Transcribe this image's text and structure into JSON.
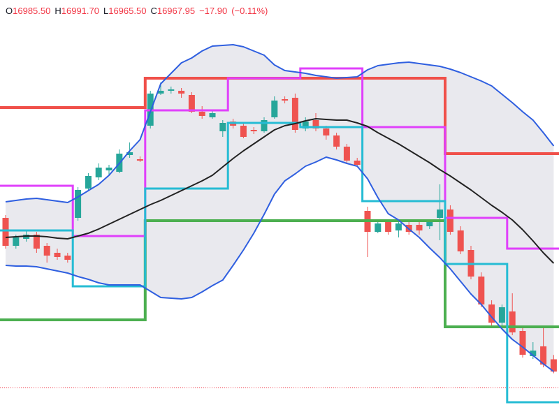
{
  "header": {
    "items": [
      {
        "key": "O",
        "value": "16985.50"
      },
      {
        "key": "H",
        "value": "16991.70"
      },
      {
        "key": "L",
        "value": "16965.50"
      },
      {
        "key": "C",
        "value": "16967.95"
      }
    ],
    "change": "−17.90",
    "change_pct": "(−0.11%)"
  },
  "chart_data": {
    "type": "candlestick",
    "ylim": [
      16900,
      17500
    ],
    "up_color": "#26a69a",
    "down_color": "#ef5350",
    "open": [
      17188,
      17148,
      17158,
      17164,
      17148,
      17138,
      17134,
      17188,
      17230,
      17246,
      17256,
      17254,
      17278,
      17272,
      17320,
      17366,
      17370,
      17370,
      17364,
      17340,
      17332,
      17312,
      17326,
      17320,
      17314,
      17312,
      17332,
      17358,
      17360,
      17316,
      17328,
      17316,
      17306,
      17290,
      17270,
      17198,
      17168,
      17182,
      17170,
      17178,
      17178,
      17176,
      17188,
      17200,
      17170,
      17142,
      17104,
      17064,
      17038,
      17054,
      17026,
      16990,
      17004,
      16985.5
    ],
    "high": [
      17192,
      17164,
      17170,
      17168,
      17152,
      17144,
      17138,
      17232,
      17252,
      17266,
      17264,
      17286,
      17296,
      17276,
      17370,
      17382,
      17376,
      17374,
      17368,
      17348,
      17342,
      17328,
      17330,
      17324,
      17318,
      17332,
      17362,
      17362,
      17366,
      17332,
      17338,
      17320,
      17310,
      17294,
      17274,
      17204,
      17184,
      17186,
      17184,
      17182,
      17182,
      17186,
      17236,
      17206,
      17176,
      17148,
      17110,
      17070,
      17064,
      17080,
      17030,
      17010,
      17030,
      16991.7
    ],
    "low": [
      17144,
      17144,
      17154,
      17138,
      17124,
      17128,
      17124,
      17184,
      17226,
      17242,
      17248,
      17252,
      17274,
      17268,
      17316,
      17364,
      17366,
      17360,
      17338,
      17330,
      17330,
      17304,
      17316,
      17302,
      17308,
      17310,
      17330,
      17352,
      17310,
      17312,
      17312,
      17300,
      17286,
      17266,
      17262,
      17132,
      17166,
      17164,
      17160,
      17164,
      17164,
      17172,
      17156,
      17164,
      17136,
      17100,
      17060,
      17034,
      17032,
      17020,
      16988,
      16986,
      16974,
      16965.5
    ],
    "close": [
      17148,
      17160,
      17164,
      17144,
      17134,
      17132,
      17128,
      17228,
      17248,
      17260,
      17260,
      17280,
      17282,
      17270,
      17366,
      17370,
      17372,
      17366,
      17340,
      17334,
      17338,
      17324,
      17320,
      17304,
      17312,
      17328,
      17356,
      17356,
      17314,
      17326,
      17316,
      17306,
      17290,
      17270,
      17264,
      17168,
      17180,
      17168,
      17180,
      17168,
      17170,
      17182,
      17200,
      17168,
      17140,
      17104,
      17064,
      17038,
      17060,
      17024,
      16992,
      16998,
      16978,
      16967.95
    ],
    "bollinger": {
      "color": "#2f5fe0",
      "middle_color": "#222222",
      "fill": "#e9e9ee",
      "upper": [
        17211,
        17213,
        17215,
        17216,
        17214,
        17212,
        17210,
        17218,
        17227,
        17236,
        17249,
        17266,
        17284,
        17300,
        17340,
        17380,
        17395,
        17410,
        17417,
        17427,
        17434,
        17435,
        17436,
        17433,
        17427,
        17421,
        17407,
        17399,
        17397,
        17395,
        17392,
        17390,
        17388,
        17389,
        17390,
        17400,
        17406,
        17408,
        17410,
        17411,
        17409,
        17407,
        17405,
        17401,
        17396,
        17390,
        17384,
        17377,
        17365,
        17353,
        17340,
        17328,
        17310,
        17291
      ],
      "middle": [
        17160,
        17161,
        17162,
        17162,
        17161,
        17159,
        17158,
        17162,
        17166,
        17172,
        17179,
        17186,
        17193,
        17200,
        17207,
        17213,
        17220,
        17227,
        17234,
        17241,
        17249,
        17261,
        17273,
        17284,
        17294,
        17304,
        17314,
        17320,
        17323,
        17327,
        17330,
        17329,
        17328,
        17328,
        17324,
        17319,
        17310,
        17302,
        17294,
        17285,
        17276,
        17267,
        17257,
        17248,
        17238,
        17228,
        17217,
        17206,
        17196,
        17185,
        17171,
        17155,
        17138,
        17123
      ],
      "lower": [
        17120,
        17119,
        17119,
        17118,
        17115,
        17112,
        17109,
        17104,
        17100,
        17095,
        17092,
        17092,
        17092,
        17092,
        17083,
        17074,
        17073,
        17072,
        17074,
        17082,
        17091,
        17099,
        17120,
        17142,
        17166,
        17193,
        17222,
        17241,
        17251,
        17262,
        17268,
        17275,
        17271,
        17266,
        17262,
        17244,
        17217,
        17194,
        17185,
        17172,
        17160,
        17145,
        17131,
        17115,
        17097,
        17079,
        17064,
        17046,
        17029,
        17014,
        17003,
        16991,
        16979,
        16968
      ]
    },
    "overlays": [
      {
        "color": "#f0504a",
        "width": 4,
        "step": true,
        "values": [
          17346,
          17346,
          17346,
          17346,
          17346,
          17346,
          17346,
          17346,
          17346,
          17346,
          17346,
          17346,
          17346,
          17346,
          17388,
          17388,
          17388,
          17388,
          17388,
          17388,
          17388,
          17388,
          17388,
          17388,
          17388,
          17388,
          17388,
          17388,
          17388,
          17388,
          17388,
          17388,
          17388,
          17388,
          17388,
          17388,
          17388,
          17388,
          17388,
          17388,
          17388,
          17388,
          17388,
          17280,
          17280,
          17280,
          17280,
          17280,
          17280,
          17280,
          17280,
          17280,
          17280,
          17280
        ]
      },
      {
        "color": "#4caf50",
        "width": 4,
        "step": true,
        "values": [
          17042,
          17042,
          17042,
          17042,
          17042,
          17042,
          17042,
          17042,
          17042,
          17042,
          17042,
          17042,
          17042,
          17042,
          17184,
          17184,
          17184,
          17184,
          17184,
          17184,
          17184,
          17184,
          17184,
          17184,
          17184,
          17184,
          17184,
          17184,
          17184,
          17184,
          17184,
          17184,
          17184,
          17184,
          17184,
          17184,
          17184,
          17184,
          17184,
          17184,
          17184,
          17184,
          17184,
          17032,
          17032,
          17032,
          17032,
          17032,
          17032,
          17032,
          17032,
          17032,
          17032,
          17032
        ]
      },
      {
        "color": "#e040fb",
        "width": 3,
        "step": true,
        "values": [
          17234,
          17234,
          17234,
          17234,
          17234,
          17234,
          17234,
          17162,
          17162,
          17162,
          17162,
          17162,
          17162,
          17162,
          17342,
          17342,
          17342,
          17342,
          17342,
          17342,
          17342,
          17342,
          17388,
          17388,
          17388,
          17388,
          17388,
          17388,
          17388,
          17402,
          17402,
          17402,
          17402,
          17402,
          17402,
          17318,
          17318,
          17318,
          17318,
          17318,
          17318,
          17318,
          17318,
          17188,
          17188,
          17188,
          17188,
          17188,
          17188,
          17144,
          17144,
          17144,
          17144,
          17144
        ]
      },
      {
        "color": "#26bcd4",
        "width": 3,
        "step": true,
        "values": [
          17170,
          17170,
          17170,
          17170,
          17170,
          17170,
          17170,
          17090,
          17090,
          17090,
          17090,
          17090,
          17090,
          17090,
          17230,
          17230,
          17230,
          17230,
          17230,
          17230,
          17230,
          17230,
          17324,
          17324,
          17324,
          17324,
          17324,
          17324,
          17324,
          17318,
          17318,
          17318,
          17318,
          17318,
          17318,
          17212,
          17212,
          17212,
          17212,
          17212,
          17212,
          17212,
          17212,
          17122,
          17122,
          17122,
          17122,
          17122,
          17122,
          16924,
          16924,
          16924,
          16924,
          16924
        ]
      }
    ],
    "price_line": {
      "value": 16945,
      "color": "#f23645"
    }
  }
}
